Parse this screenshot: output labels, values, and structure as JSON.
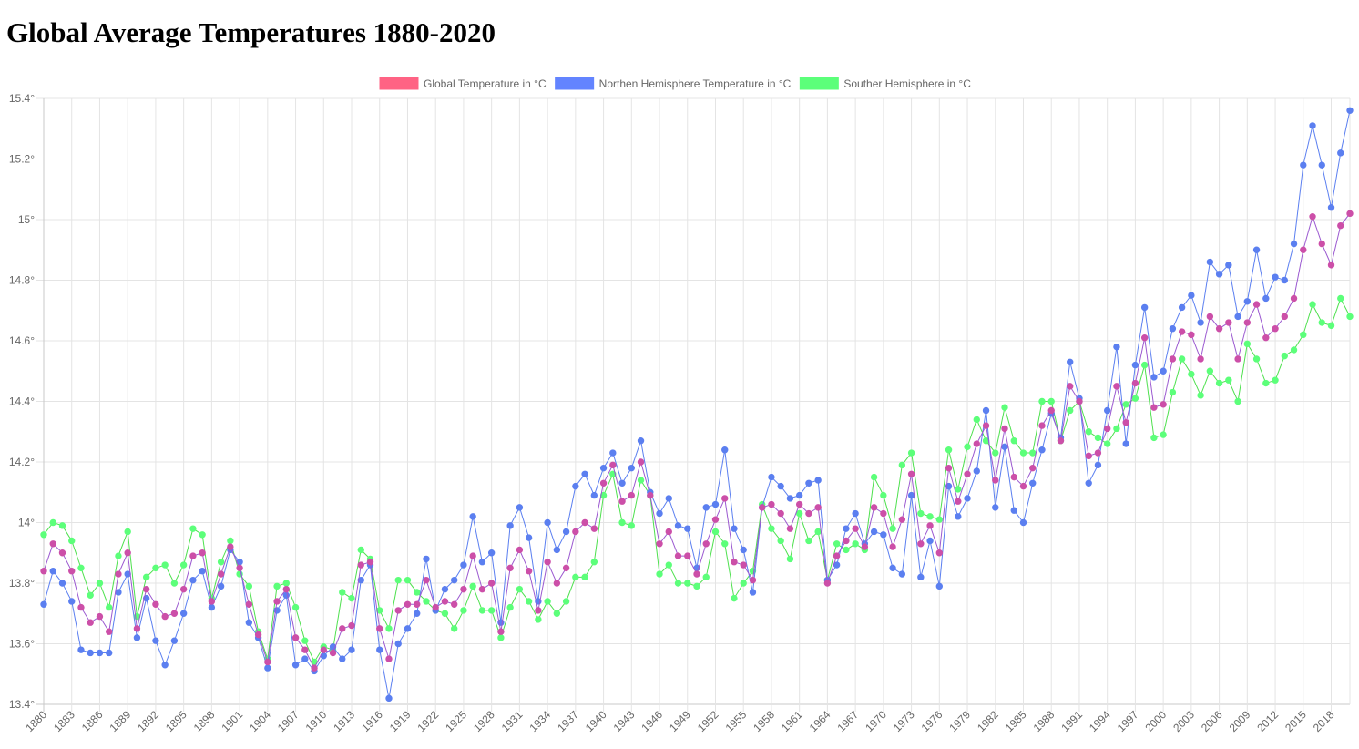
{
  "page": {
    "title": "Global Average Temperatures 1880-2020"
  },
  "chart_data": {
    "type": "line",
    "title": "Global Average Temperatures 1880-2020",
    "xlabel": "",
    "ylabel": "",
    "ylim": [
      13.4,
      15.4
    ],
    "y_ticks": [
      "13.4°",
      "13.6°",
      "13.8°",
      "14°",
      "14.2°",
      "14.4°",
      "14.6°",
      "14.8°",
      "15°",
      "15.2°",
      "15.4°"
    ],
    "x_start_year": 1880,
    "x_end_year": 2020,
    "x_tick_step": 3,
    "grid": true,
    "legend_position": "top",
    "series": [
      {
        "name": "Global Temperature in °C",
        "line_color": "#9b59d0",
        "fill_color": "#ff6384",
        "point_color": "#cc4fa8",
        "values": [
          13.84,
          13.93,
          13.9,
          13.84,
          13.72,
          13.67,
          13.69,
          13.64,
          13.83,
          13.9,
          13.65,
          13.78,
          13.73,
          13.69,
          13.7,
          13.78,
          13.89,
          13.9,
          13.74,
          13.83,
          13.92,
          13.85,
          13.73,
          13.63,
          13.54,
          13.74,
          13.78,
          13.62,
          13.58,
          13.52,
          13.58,
          13.57,
          13.65,
          13.66,
          13.86,
          13.87,
          13.65,
          13.55,
          13.71,
          13.73,
          13.73,
          13.81,
          13.72,
          13.74,
          13.73,
          13.78,
          13.89,
          13.78,
          13.8,
          13.64,
          13.85,
          13.91,
          13.84,
          13.71,
          13.87,
          13.8,
          13.85,
          13.97,
          14.0,
          13.98,
          14.13,
          14.19,
          14.07,
          14.09,
          14.2,
          14.09,
          13.93,
          13.97,
          13.89,
          13.89,
          13.83,
          13.93,
          14.01,
          14.08,
          13.87,
          13.86,
          13.81,
          14.05,
          14.06,
          14.03,
          13.98,
          14.06,
          14.03,
          14.05,
          13.8,
          13.89,
          13.94,
          13.98,
          13.92,
          14.05,
          14.03,
          13.92,
          14.01,
          14.16,
          13.93,
          13.99,
          13.9,
          14.18,
          14.07,
          14.16,
          14.26,
          14.32,
          14.14,
          14.31,
          14.15,
          14.12,
          14.18,
          14.32,
          14.37,
          14.27,
          14.45,
          14.4,
          14.22,
          14.23,
          14.31,
          14.45,
          14.33,
          14.46,
          14.61,
          14.38,
          14.39,
          14.54,
          14.63,
          14.62,
          14.54,
          14.68,
          14.64,
          14.66,
          14.54,
          14.66,
          14.72,
          14.61,
          14.64,
          14.68,
          14.74,
          14.9,
          15.01,
          14.92,
          14.85,
          14.98,
          15.02
        ]
      },
      {
        "name": "Northen Hemisphere Temperature in °C",
        "line_color": "#5b7ff0",
        "fill_color": "#6384ff",
        "point_color": "#5b7ff0",
        "values": [
          13.73,
          13.84,
          13.8,
          13.74,
          13.58,
          13.57,
          13.57,
          13.57,
          13.77,
          13.83,
          13.62,
          13.75,
          13.61,
          13.53,
          13.61,
          13.7,
          13.81,
          13.84,
          13.72,
          13.79,
          13.91,
          13.87,
          13.67,
          13.62,
          13.52,
          13.71,
          13.76,
          13.53,
          13.55,
          13.51,
          13.56,
          13.59,
          13.55,
          13.58,
          13.81,
          13.86,
          13.58,
          13.42,
          13.6,
          13.65,
          13.7,
          13.88,
          13.71,
          13.78,
          13.81,
          13.86,
          14.02,
          13.87,
          13.9,
          13.67,
          13.99,
          14.05,
          13.95,
          13.74,
          14.0,
          13.91,
          13.97,
          14.12,
          14.16,
          14.09,
          14.18,
          14.23,
          14.13,
          14.18,
          14.27,
          14.1,
          14.03,
          14.08,
          13.99,
          13.98,
          13.85,
          14.05,
          14.06,
          14.24,
          13.98,
          13.91,
          13.77,
          14.05,
          14.15,
          14.12,
          14.08,
          14.09,
          14.13,
          14.14,
          13.81,
          13.86,
          13.98,
          14.03,
          13.93,
          13.97,
          13.96,
          13.85,
          13.83,
          14.09,
          13.82,
          13.94,
          13.79,
          14.12,
          14.02,
          14.08,
          14.17,
          14.37,
          14.05,
          14.25,
          14.04,
          14.0,
          14.13,
          14.24,
          14.36,
          14.28,
          14.53,
          14.41,
          14.13,
          14.19,
          14.37,
          14.58,
          14.26,
          14.52,
          14.71,
          14.48,
          14.5,
          14.64,
          14.71,
          14.75,
          14.66,
          14.86,
          14.82,
          14.85,
          14.68,
          14.73,
          14.9,
          14.74,
          14.81,
          14.8,
          14.92,
          15.18,
          15.31,
          15.18,
          15.04,
          15.22,
          15.36
        ]
      },
      {
        "name": "Souther Hemisphere in °C",
        "line_color": "#4ee04e",
        "fill_color": "#5cff7a",
        "point_color": "#5cff7a",
        "values": [
          13.96,
          14.0,
          13.99,
          13.94,
          13.85,
          13.76,
          13.8,
          13.72,
          13.89,
          13.97,
          13.69,
          13.82,
          13.85,
          13.86,
          13.8,
          13.86,
          13.98,
          13.96,
          13.75,
          13.87,
          13.94,
          13.83,
          13.79,
          13.64,
          13.55,
          13.79,
          13.8,
          13.72,
          13.61,
          13.54,
          13.59,
          13.58,
          13.77,
          13.75,
          13.91,
          13.88,
          13.71,
          13.65,
          13.81,
          13.81,
          13.77,
          13.74,
          13.71,
          13.7,
          13.65,
          13.71,
          13.79,
          13.71,
          13.71,
          13.62,
          13.72,
          13.78,
          13.74,
          13.68,
          13.74,
          13.7,
          13.74,
          13.82,
          13.82,
          13.87,
          14.09,
          14.16,
          14.0,
          13.99,
          14.14,
          14.09,
          13.83,
          13.86,
          13.8,
          13.8,
          13.79,
          13.82,
          13.97,
          13.93,
          13.75,
          13.8,
          13.84,
          14.06,
          13.98,
          13.94,
          13.88,
          14.03,
          13.94,
          13.97,
          13.81,
          13.93,
          13.91,
          13.93,
          13.91,
          14.15,
          14.09,
          13.98,
          14.19,
          14.23,
          14.03,
          14.02,
          14.01,
          14.24,
          14.11,
          14.25,
          14.34,
          14.27,
          14.23,
          14.38,
          14.27,
          14.23,
          14.23,
          14.4,
          14.4,
          14.27,
          14.37,
          14.4,
          14.3,
          14.28,
          14.26,
          14.31,
          14.39,
          14.41,
          14.52,
          14.28,
          14.29,
          14.43,
          14.54,
          14.49,
          14.42,
          14.5,
          14.46,
          14.47,
          14.4,
          14.59,
          14.54,
          14.46,
          14.47,
          14.55,
          14.57,
          14.62,
          14.72,
          14.66,
          14.65,
          14.74,
          14.68
        ]
      }
    ]
  }
}
